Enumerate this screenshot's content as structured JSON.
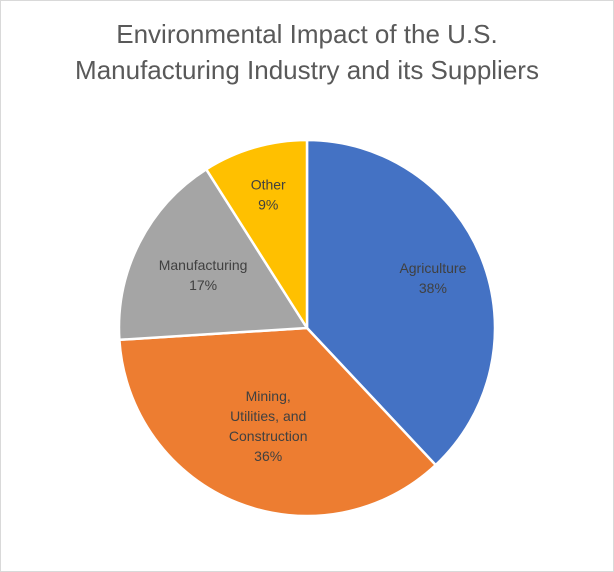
{
  "chart_data": {
    "type": "pie",
    "title_lines": [
      "Environmental Impact of the U.S.",
      "Manufacturing Industry and its Suppliers"
    ],
    "categories": [
      "Agriculture",
      "Mining, Utilities, and Construction",
      "Manufacturing",
      "Other"
    ],
    "label_lines": [
      [
        "Agriculture",
        "38%"
      ],
      [
        "Mining,",
        "Utilities, and",
        "Construction",
        "36%"
      ],
      [
        "Manufacturing",
        "17%"
      ],
      [
        "Other",
        "9%"
      ]
    ],
    "values": [
      38,
      36,
      17,
      9
    ],
    "colors": [
      "#4472c4",
      "#ed7d31",
      "#a5a5a5",
      "#ffc000"
    ],
    "label_color": "#404040",
    "slice_border": "#ffffff",
    "start_angle": "12 o'clock",
    "direction": "clockwise",
    "legend": "none"
  }
}
